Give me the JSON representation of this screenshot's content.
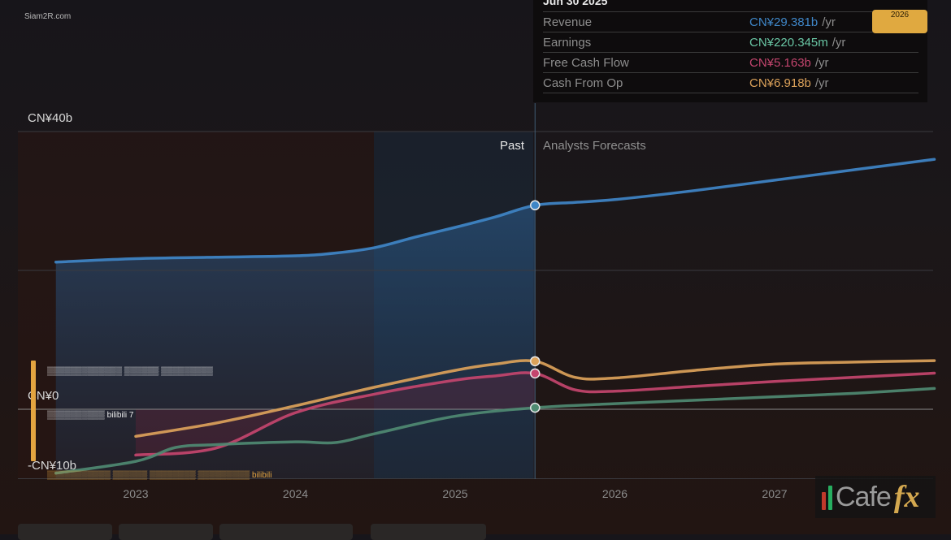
{
  "watermark": "Siam2R.com",
  "tooltip": {
    "date": "Jun 30 2025",
    "rows": [
      {
        "label": "Revenue",
        "value": "CN¥29.381b",
        "unit": "/yr",
        "color": "#3f86c7"
      },
      {
        "label": "Earnings",
        "value": "CN¥220.345m",
        "unit": "/yr",
        "color": "#69c6a4"
      },
      {
        "label": "Free Cash Flow",
        "value": "CN¥5.163b",
        "unit": "/yr",
        "color": "#c4456e"
      },
      {
        "label": "Cash From Op",
        "value": "CN¥6.918b",
        "unit": "/yr",
        "color": "#dca25a"
      }
    ]
  },
  "badge": "2026",
  "legend_overlay": {
    "line1": "▒▒▒▒▒▒▒▒▒▒▒▒▒ ▒▒▒▒▒▒ ▒▒▒▒▒▒▒▒▒",
    "line2": "▒▒▒▒▒▒▒▒▒▒ bilibili 7",
    "line3": "▒▒▒▒▒▒▒▒▒▒▒ ▒▒▒▒▒▒ ▒▒▒▒▒▒▒▒ ▒▒▒▒▒▒▒▒▒ bilibili"
  },
  "logo": {
    "text": "Cafe",
    "accent": "fx"
  },
  "chart_data": {
    "type": "line",
    "y_tick_labels": [
      "CN¥40b",
      "CN¥0",
      "-CN¥10b"
    ],
    "ylim": [
      -10,
      40
    ],
    "xlim": [
      2022.67,
      2028.0
    ],
    "x_tick_labels": [
      "2023",
      "2024",
      "2025",
      "2026",
      "2027"
    ],
    "x_ticks": [
      2023,
      2024,
      2025,
      2026,
      2027
    ],
    "zones": {
      "past_label": "Past",
      "forecast_label": "Analysts Forecasts",
      "divider_x": 2025.5
    },
    "grid": true,
    "series": [
      {
        "name": "Revenue",
        "color": "#3f86c7",
        "x": [
          2022.5,
          2023.0,
          2023.5,
          2024.0,
          2024.25,
          2024.5,
          2024.75,
          2025.0,
          2025.25,
          2025.5,
          2025.75,
          2026.0,
          2026.5,
          2027.0,
          2027.5,
          2028.0
        ],
        "y": [
          21.2,
          21.7,
          21.9,
          22.1,
          22.5,
          23.3,
          24.8,
          26.2,
          27.7,
          29.38,
          29.8,
          30.2,
          31.5,
          33.0,
          34.5,
          36.0
        ]
      },
      {
        "name": "Cash From Op",
        "color": "#dca25a",
        "x": [
          2023.0,
          2023.5,
          2024.0,
          2024.5,
          2025.0,
          2025.25,
          2025.5,
          2025.75,
          2026.0,
          2026.5,
          2027.0,
          2027.5,
          2028.0
        ],
        "y": [
          -3.9,
          -2.0,
          0.5,
          3.2,
          5.6,
          6.5,
          6.92,
          4.6,
          4.5,
          5.6,
          6.5,
          6.8,
          7.0
        ]
      },
      {
        "name": "Free Cash Flow",
        "color": "#c4456e",
        "x": [
          2023.0,
          2023.5,
          2024.0,
          2024.5,
          2025.0,
          2025.25,
          2025.5,
          2025.75,
          2026.0,
          2026.5,
          2027.0,
          2027.5,
          2028.0
        ],
        "y": [
          -6.6,
          -5.6,
          -0.5,
          2.2,
          4.2,
          4.8,
          5.16,
          2.8,
          2.6,
          3.3,
          4.0,
          4.6,
          5.2
        ]
      },
      {
        "name": "Earnings",
        "color": "#4f8a72",
        "x": [
          2022.5,
          2023.0,
          2023.25,
          2023.5,
          2024.0,
          2024.25,
          2024.5,
          2025.0,
          2025.5,
          2026.0,
          2026.5,
          2027.0,
          2027.5,
          2028.0
        ],
        "y": [
          -9.2,
          -7.5,
          -5.5,
          -5.1,
          -4.7,
          -4.8,
          -3.5,
          -1.0,
          0.22,
          0.8,
          1.3,
          1.8,
          2.3,
          3.0
        ]
      }
    ],
    "markers_at_x": 2025.5
  }
}
